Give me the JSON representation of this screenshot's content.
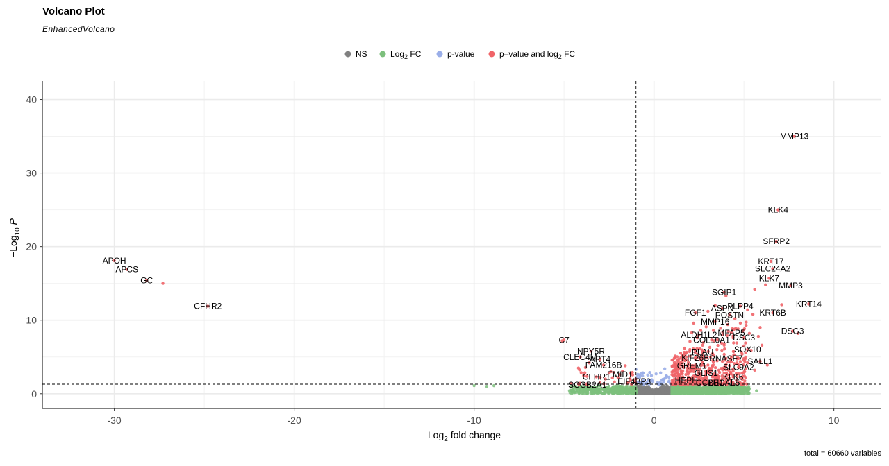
{
  "chart_data": {
    "type": "scatter",
    "title": "Volcano Plot",
    "subtitle": "EnhancedVolcano",
    "caption": "total = 60660 variables",
    "xlabel": "Log2 fold change",
    "ylabel": "-Log10 P",
    "xlim": [
      -34,
      12.6
    ],
    "ylim": [
      -2,
      42.5
    ],
    "x_ticks": [
      -30,
      -20,
      -10,
      0,
      10
    ],
    "y_ticks": [
      0,
      10,
      20,
      30,
      40
    ],
    "fc_cutoff": 1,
    "p_cutoff_log10": 1.3,
    "grid": true,
    "legend_position": "top",
    "legend": [
      {
        "key": "NS",
        "label": "NS",
        "color": "#808080"
      },
      {
        "key": "FC",
        "label": "Log",
        "sub": "2",
        "label_after": " FC",
        "color": "#7cbf7c"
      },
      {
        "key": "P",
        "label": "p-value",
        "color": "#9aaee8"
      },
      {
        "key": "FCP",
        "label": "p–value and log",
        "sub": "2",
        "label_after": " FC",
        "color": "#f06468"
      }
    ],
    "labeled_points": [
      {
        "gene": "MMP13",
        "x": 7.8,
        "y": 35.0
      },
      {
        "gene": "KLK4",
        "x": 6.9,
        "y": 25.0
      },
      {
        "gene": "SFRP2",
        "x": 6.8,
        "y": 20.7
      },
      {
        "gene": "KRT17",
        "x": 6.5,
        "y": 18.0
      },
      {
        "gene": "SLC24A2",
        "x": 6.6,
        "y": 17.0
      },
      {
        "gene": "MMP3",
        "x": 7.6,
        "y": 14.7
      },
      {
        "gene": "KLK7",
        "x": 6.4,
        "y": 15.7
      },
      {
        "gene": "KRT14",
        "x": 8.6,
        "y": 12.2
      },
      {
        "gene": "KRT6B",
        "x": 6.6,
        "y": 11.0
      },
      {
        "gene": "DSG3",
        "x": 7.7,
        "y": 8.5
      },
      {
        "gene": "SGIP1",
        "x": 3.9,
        "y": 13.8
      },
      {
        "gene": "ASPN",
        "x": 3.8,
        "y": 11.6
      },
      {
        "gene": "PLPP4",
        "x": 4.8,
        "y": 11.9
      },
      {
        "gene": "FGF1",
        "x": 2.3,
        "y": 11.0
      },
      {
        "gene": "POSTN",
        "x": 4.2,
        "y": 10.7
      },
      {
        "gene": "MMP16",
        "x": 3.4,
        "y": 9.8
      },
      {
        "gene": "MFAP5",
        "x": 4.3,
        "y": 8.3
      },
      {
        "gene": "ALDH1L2",
        "x": 2.5,
        "y": 8.0
      },
      {
        "gene": "DSC3",
        "x": 5.0,
        "y": 7.6
      },
      {
        "gene": "COL10A1",
        "x": 3.2,
        "y": 7.3
      },
      {
        "gene": "SOX10",
        "x": 5.2,
        "y": 6.0
      },
      {
        "gene": "PLAU",
        "x": 2.7,
        "y": 5.7
      },
      {
        "gene": "KIF26B",
        "x": 2.3,
        "y": 4.9
      },
      {
        "gene": "RNASE7",
        "x": 4.0,
        "y": 4.8
      },
      {
        "gene": "SALL1",
        "x": 5.9,
        "y": 4.4
      },
      {
        "gene": "GREM1",
        "x": 2.1,
        "y": 3.8
      },
      {
        "gene": "SLC9A2",
        "x": 4.7,
        "y": 3.6
      },
      {
        "gene": "GLIS1",
        "x": 2.9,
        "y": 2.8
      },
      {
        "gene": "KLK6",
        "x": 4.4,
        "y": 2.3
      },
      {
        "gene": "HEPH",
        "x": 1.8,
        "y": 1.8
      },
      {
        "gene": "CCBE1",
        "x": 3.1,
        "y": 1.5
      },
      {
        "gene": "LUCAL5",
        "x": 3.9,
        "y": 1.5
      },
      {
        "gene": "APOH",
        "x": -30.0,
        "y": 18.1
      },
      {
        "gene": "APCS",
        "x": -29.3,
        "y": 16.9
      },
      {
        "gene": "GC",
        "x": -28.2,
        "y": 15.4
      },
      {
        "gene": "CFHR2",
        "x": -24.8,
        "y": 11.9
      },
      {
        "gene": "C7",
        "x": -5.0,
        "y": 7.3
      },
      {
        "gene": "NPY5R",
        "x": -3.5,
        "y": 5.8
      },
      {
        "gene": "CLEC4M",
        "x": -4.1,
        "y": 5.0
      },
      {
        "gene": "ART4",
        "x": -3.0,
        "y": 4.7
      },
      {
        "gene": "FAM216B",
        "x": -2.8,
        "y": 3.9
      },
      {
        "gene": "CFHR1",
        "x": -3.2,
        "y": 2.3
      },
      {
        "gene": "EMID1",
        "x": -1.9,
        "y": 2.6
      },
      {
        "gene": "EIF4BP3",
        "x": -1.1,
        "y": 1.7
      },
      {
        "gene": "SCGB2A1",
        "x": -3.7,
        "y": 1.2
      }
    ],
    "extra_points_fcp": [
      [
        -27.3,
        15.0
      ],
      [
        -5.1,
        7.2
      ],
      [
        -4.2,
        3.5
      ],
      [
        -3.6,
        4.2
      ],
      [
        -2.4,
        3.0
      ],
      [
        -2.0,
        2.2
      ],
      [
        -1.6,
        3.8
      ],
      [
        -1.3,
        1.8
      ],
      [
        -2.7,
        2.0
      ],
      [
        -3.0,
        1.5
      ],
      [
        -1.5,
        1.4
      ],
      [
        -2.2,
        1.6
      ],
      [
        -4.6,
        1.4
      ],
      [
        -1.2,
        2.9
      ],
      [
        5.5,
        10.8
      ],
      [
        5.2,
        11.4
      ],
      [
        4.8,
        9.6
      ],
      [
        4.5,
        10.2
      ],
      [
        5.9,
        9.0
      ],
      [
        6.2,
        14.8
      ],
      [
        5.6,
        14.2
      ],
      [
        4.1,
        9.4
      ],
      [
        3.7,
        8.9
      ],
      [
        3.3,
        8.6
      ],
      [
        2.9,
        9.1
      ],
      [
        2.2,
        9.6
      ],
      [
        5.3,
        8.2
      ],
      [
        5.8,
        7.8
      ],
      [
        4.6,
        6.9
      ],
      [
        3.9,
        6.6
      ],
      [
        3.5,
        6.0
      ],
      [
        2.7,
        6.6
      ],
      [
        2.0,
        7.1
      ],
      [
        2.4,
        7.6
      ],
      [
        5.4,
        5.9
      ],
      [
        6.0,
        6.6
      ],
      [
        4.9,
        5.4
      ],
      [
        4.3,
        5.0
      ],
      [
        3.3,
        5.2
      ],
      [
        2.6,
        4.6
      ],
      [
        1.8,
        5.0
      ],
      [
        1.5,
        4.2
      ],
      [
        1.3,
        3.6
      ],
      [
        1.6,
        3.1
      ],
      [
        2.2,
        3.4
      ],
      [
        3.0,
        3.9
      ],
      [
        3.6,
        3.2
      ],
      [
        4.2,
        3.8
      ],
      [
        5.2,
        4.2
      ],
      [
        5.6,
        3.2
      ],
      [
        6.3,
        3.9
      ],
      [
        1.2,
        2.4
      ],
      [
        1.9,
        2.7
      ],
      [
        2.5,
        2.2
      ],
      [
        3.3,
        2.5
      ],
      [
        3.9,
        2.8
      ],
      [
        4.6,
        2.6
      ],
      [
        5.1,
        2.2
      ],
      [
        1.4,
        1.8
      ],
      [
        2.0,
        1.6
      ],
      [
        2.8,
        1.9
      ],
      [
        3.5,
        1.7
      ],
      [
        4.3,
        1.6
      ],
      [
        1.7,
        6.2
      ],
      [
        2.1,
        8.3
      ],
      [
        3.0,
        11.2
      ],
      [
        3.4,
        12.0
      ],
      [
        4.0,
        13.3
      ],
      [
        8.0,
        8.2
      ],
      [
        7.1,
        12.1
      ],
      [
        1.1,
        1.5
      ],
      [
        1.3,
        2.9
      ],
      [
        1.1,
        3.2
      ],
      [
        2.3,
        5.6
      ],
      [
        3.8,
        4.4
      ],
      [
        4.7,
        4.8
      ],
      [
        1.6,
        2.3
      ],
      [
        1.9,
        3.9
      ],
      [
        2.9,
        3.0
      ],
      [
        4.0,
        2.0
      ],
      [
        3.1,
        6.3
      ],
      [
        2.6,
        8.6
      ],
      [
        4.4,
        7.6
      ],
      [
        5.0,
        6.5
      ]
    ],
    "extra_points_fc": [
      [
        -10.0,
        1.1
      ],
      [
        -9.3,
        1.0
      ],
      [
        -8.9,
        1.1
      ],
      [
        -4.7,
        0.4
      ],
      [
        -4.0,
        0.6
      ],
      [
        -3.5,
        0.3
      ],
      [
        -2.8,
        0.5
      ],
      [
        -2.2,
        0.8
      ],
      [
        -1.7,
        0.3
      ],
      [
        -1.3,
        1.0
      ],
      [
        -3.2,
        0.9
      ],
      [
        -4.4,
        0.2
      ],
      [
        1.3,
        0.4
      ],
      [
        1.8,
        0.8
      ],
      [
        2.4,
        0.3
      ],
      [
        3.1,
        0.9
      ],
      [
        3.7,
        0.5
      ],
      [
        4.3,
        1.0
      ],
      [
        4.8,
        0.3
      ],
      [
        5.3,
        0.7
      ],
      [
        2.0,
        1.1
      ],
      [
        2.9,
        0.2
      ],
      [
        3.5,
        1.1
      ],
      [
        4.0,
        0.2
      ],
      [
        1.5,
        1.0
      ],
      [
        5.7,
        0.4
      ]
    ],
    "extra_points_p": [
      [
        -1.0,
        3.3
      ],
      [
        -0.8,
        2.2
      ],
      [
        -0.6,
        1.7
      ],
      [
        -0.4,
        1.5
      ],
      [
        0.5,
        1.8
      ],
      [
        0.7,
        2.4
      ],
      [
        0.8,
        1.6
      ],
      [
        0.6,
        3.4
      ],
      [
        0.9,
        1.4
      ],
      [
        -0.9,
        1.5
      ],
      [
        -0.7,
        2.8
      ],
      [
        0.4,
        1.4
      ]
    ]
  }
}
